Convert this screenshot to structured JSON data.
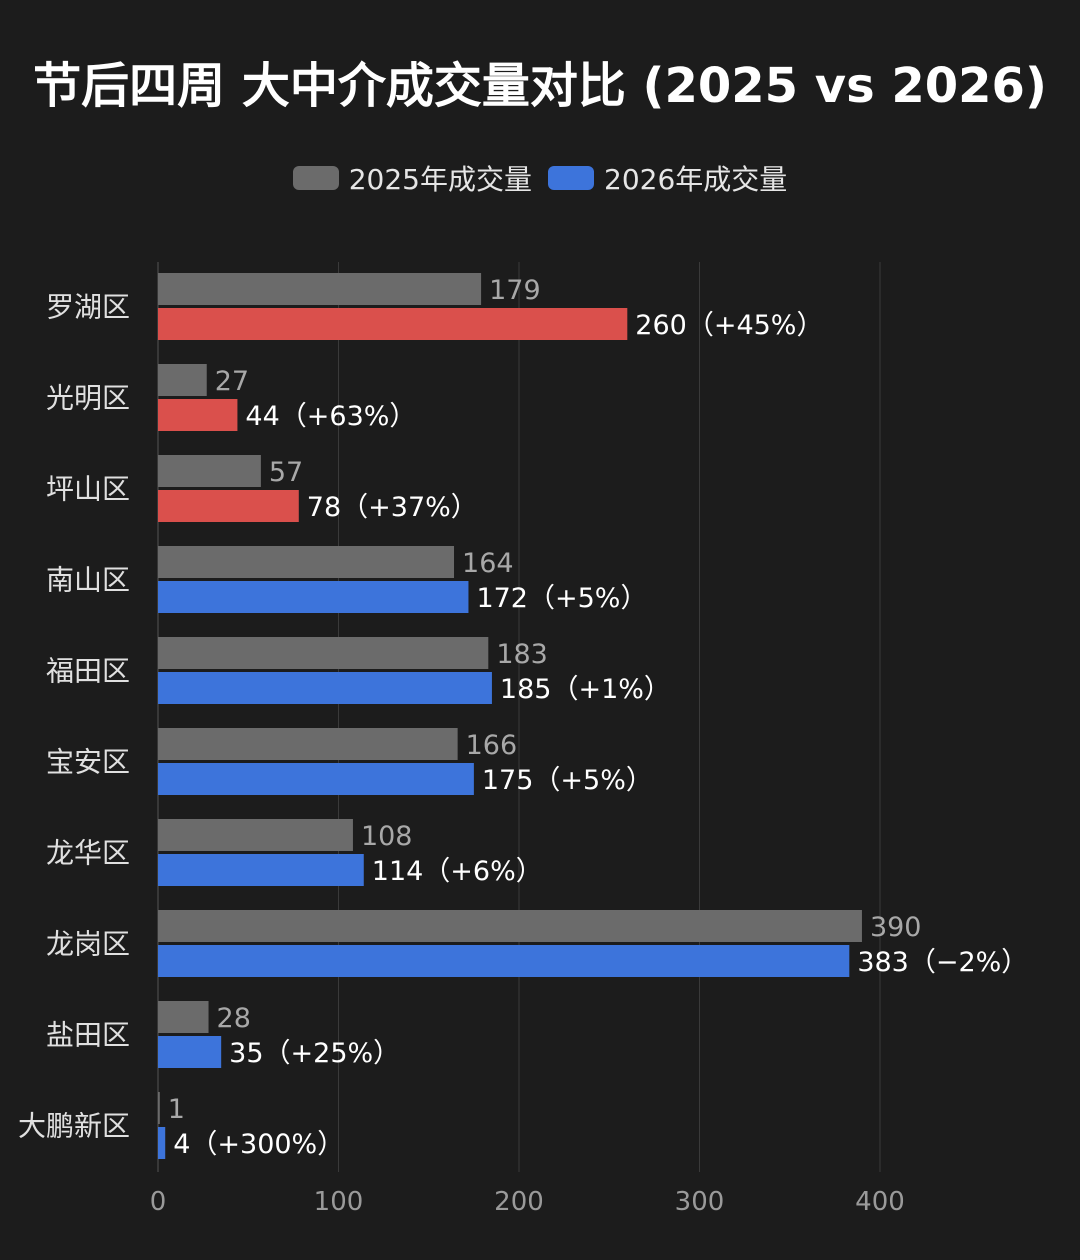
{
  "chart_data": {
    "type": "bar",
    "orientation": "horizontal",
    "title": "节后四周 大中介成交量对比 (2025 vs 2026)",
    "categories": [
      "罗湖区",
      "光明区",
      "坪山区",
      "南山区",
      "福田区",
      "宝安区",
      "龙华区",
      "龙岗区",
      "盐田区",
      "大鹏新区"
    ],
    "series": [
      {
        "name": "2025年成交量",
        "values": [
          179,
          27,
          57,
          164,
          183,
          166,
          108,
          390,
          28,
          1
        ]
      },
      {
        "name": "2026年成交量",
        "values": [
          260,
          44,
          78,
          172,
          185,
          175,
          114,
          383,
          35,
          4
        ]
      }
    ],
    "data_labels_2026": [
      "260（+45%）",
      "44（+63%）",
      "78（+37%）",
      "172（+5%）",
      "185（+1%）",
      "175（+5%）",
      "114（+6%）",
      "383（−2%）",
      "35（+25%）",
      "4（+300%）"
    ],
    "highlighted_categories": [
      "罗湖区",
      "光明区",
      "坪山区"
    ],
    "xlim": [
      0,
      400
    ],
    "xticks": [
      0,
      100,
      200,
      300,
      400
    ],
    "grid": "vertical",
    "legend_position": "top-center",
    "colors": {
      "series_2025": "#6b6b6b",
      "series_2026": "#3d74db",
      "highlight_2026": "#da504c",
      "background": "#1c1c1c",
      "grid": "#3a3a3a",
      "label_2025": "#a8a8a8",
      "label_2026": "#ffffff",
      "tick": "#9a9a9a",
      "category": "#e0e0e0"
    }
  }
}
